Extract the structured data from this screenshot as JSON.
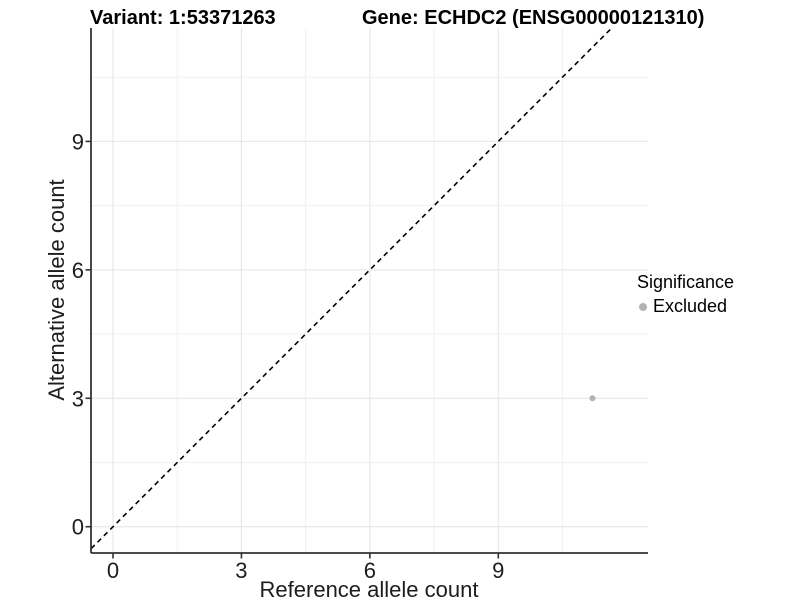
{
  "titles": {
    "variant": "Variant: 1:53371263",
    "gene": "Gene: ECHDC2 (ENSG00000121310)"
  },
  "chart_data": {
    "type": "scatter",
    "xlabel": "Reference allele count",
    "ylabel": "Alternative allele count",
    "x_ticks": [
      0,
      3,
      6,
      9
    ],
    "y_ticks": [
      0,
      3,
      6,
      9
    ],
    "x_minor_gridlines": [
      1.5,
      4.5,
      7.5,
      10.5
    ],
    "y_minor_gridlines": [
      1.5,
      4.5,
      7.5,
      10.5
    ],
    "xlim": [
      -0.51,
      12.5
    ],
    "ylim": [
      -0.61,
      11.65
    ],
    "grid": "major and minor light-gray gridlines on white panel",
    "identity_line": {
      "equation": "y = x",
      "style": "dashed",
      "color": "#000000"
    },
    "series": [
      {
        "name": "Excluded",
        "marker": "circle",
        "color": "#b3b3b3",
        "points": [
          [
            11.2,
            3.0
          ]
        ]
      }
    ],
    "legend": {
      "title": "Significance",
      "position": "right",
      "entries": [
        {
          "label": "Excluded",
          "color": "#b3b3b3",
          "marker": "circle"
        }
      ]
    },
    "colors": {
      "axis_line": "#333333",
      "tick_text": "#1d1d1d",
      "grid_major": "#e4e4e4",
      "grid_minor": "#f1f1f1",
      "background": "#ffffff"
    }
  }
}
